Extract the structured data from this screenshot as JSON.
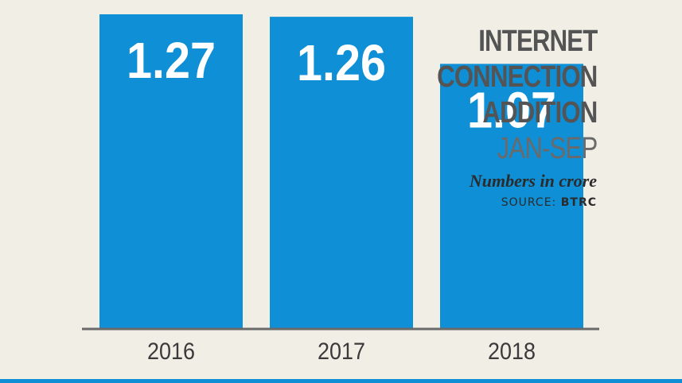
{
  "chart_data": {
    "type": "bar",
    "title_lines": [
      "INTERNET",
      "CONNECTION",
      "ADDITION"
    ],
    "subtitle": "JAN-SEP",
    "unit_note": "Numbers in crore",
    "source_label": "SOURCE:",
    "source_value": "BTRC",
    "categories": [
      "2016",
      "2017",
      "2018"
    ],
    "values": [
      1.27,
      1.26,
      1.07
    ],
    "value_labels": [
      "1.27",
      "1.26",
      "1.07"
    ],
    "bar_color": "#0e8fd6",
    "axis_color": "#6a6a6a",
    "label_color": "#ffffff"
  }
}
